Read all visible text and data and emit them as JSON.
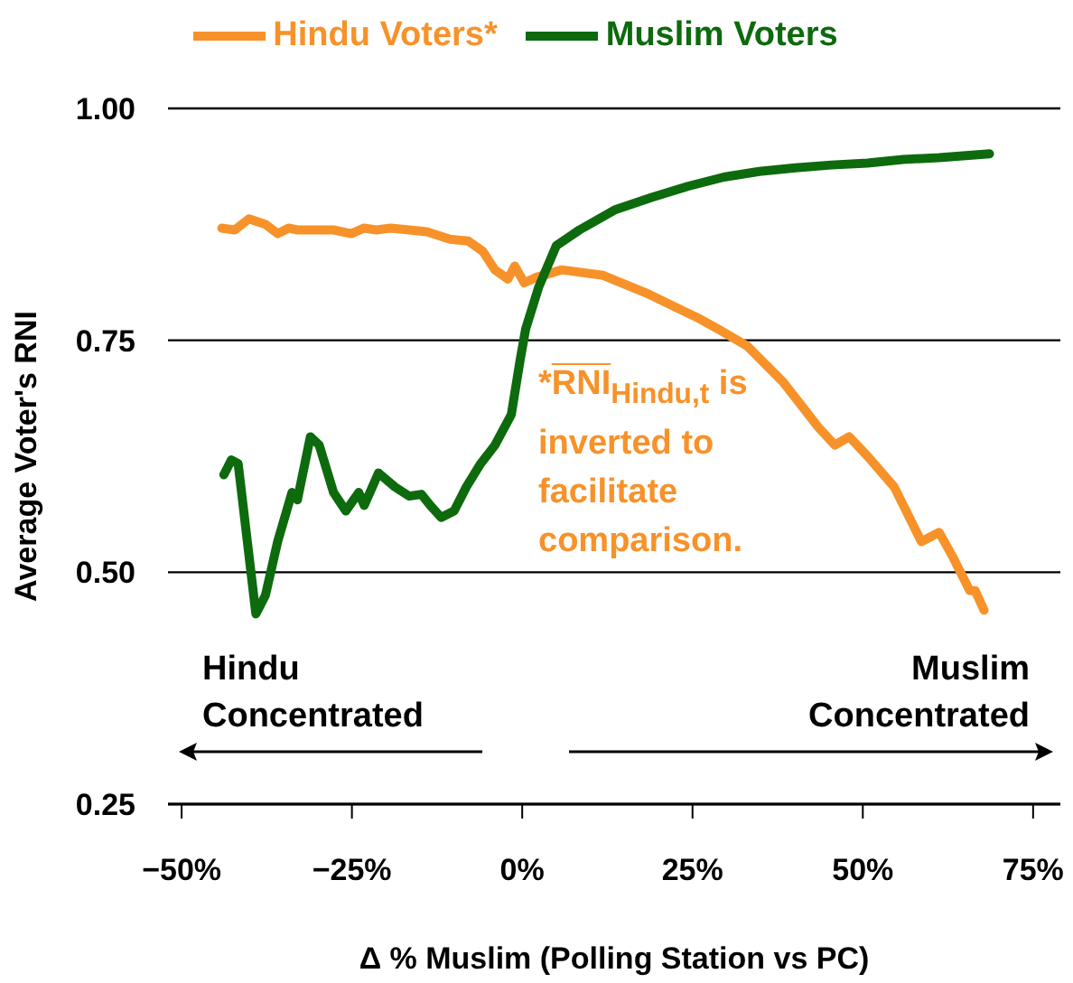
{
  "chart_data": {
    "type": "line",
    "xlabel": "Δ % Muslim (Polling Station vs PC)",
    "ylabel": "Average Voter's RNI",
    "xlim": [
      -52,
      79
    ],
    "xticks": [
      {
        "value": -50,
        "label": "−50%"
      },
      {
        "value": -25,
        "label": "−25%"
      },
      {
        "value": 0,
        "label": "0%"
      },
      {
        "value": 25,
        "label": "25%"
      },
      {
        "value": 50,
        "label": "50%"
      },
      {
        "value": 75,
        "label": "75%"
      }
    ],
    "ylim": [
      0.25,
      1.0
    ],
    "yticks": [
      {
        "value": 0.25,
        "label": "0.25"
      },
      {
        "value": 0.5,
        "label": "0.50"
      },
      {
        "value": 0.75,
        "label": "0.75"
      },
      {
        "value": 1.0,
        "label": "1.00"
      }
    ],
    "grid": "y",
    "legend": "top",
    "marker": "none",
    "line_style": "solid",
    "annotations": [
      "Hindu Concentrated",
      "Muslim Concentrated",
      "*RNI$_{Hindu,t}$ is inverted to facilitate comparison."
    ],
    "series": [
      {
        "name": "Hindu Voters*",
        "color": "#f7922a",
        "x": [
          -44.1,
          -42.2,
          -40.1,
          -37.7,
          -35.9,
          -34.3,
          -33.0,
          -30.3,
          -27.7,
          -25.1,
          -23.2,
          -21.4,
          -19.3,
          -16.6,
          -14.0,
          -10.6,
          -7.9,
          -5.8,
          -4.0,
          -2.1,
          -1.1,
          0.3,
          2.1,
          5.8,
          11.9,
          18.2,
          26.1,
          28.8,
          33.0,
          38.3,
          43.5,
          45.9,
          48.0,
          50.7,
          54.6,
          58.6,
          61.2,
          63.1,
          65.7,
          66.5,
          67.8
        ],
        "values": [
          0.871,
          0.869,
          0.881,
          0.875,
          0.865,
          0.871,
          0.869,
          0.869,
          0.869,
          0.865,
          0.871,
          0.869,
          0.871,
          0.869,
          0.867,
          0.859,
          0.857,
          0.846,
          0.826,
          0.816,
          0.83,
          0.812,
          0.818,
          0.826,
          0.82,
          0.801,
          0.773,
          0.762,
          0.744,
          0.705,
          0.656,
          0.637,
          0.646,
          0.625,
          0.592,
          0.533,
          0.543,
          0.518,
          0.48,
          0.48,
          0.459
        ]
      },
      {
        "name": "Muslim Voters",
        "color": "#0d6a0d",
        "x": [
          -43.8,
          -42.7,
          -41.7,
          -39.1,
          -37.7,
          -35.9,
          -33.8,
          -33.0,
          -31.1,
          -29.8,
          -27.7,
          -25.9,
          -24.0,
          -23.2,
          -21.1,
          -18.7,
          -16.6,
          -14.8,
          -13.5,
          -11.9,
          -10.0,
          -8.2,
          -6.1,
          -4.0,
          -1.6,
          -0.3,
          0.5,
          2.4,
          5.0,
          8.4,
          13.7,
          19.0,
          24.3,
          29.6,
          34.8,
          40.1,
          45.4,
          50.7,
          55.9,
          61.2,
          68.6
        ],
        "values": [
          0.605,
          0.621,
          0.617,
          0.455,
          0.475,
          0.533,
          0.586,
          0.578,
          0.646,
          0.637,
          0.586,
          0.566,
          0.586,
          0.572,
          0.607,
          0.592,
          0.582,
          0.584,
          0.572,
          0.559,
          0.566,
          0.592,
          0.617,
          0.637,
          0.67,
          0.729,
          0.762,
          0.807,
          0.852,
          0.869,
          0.891,
          0.904,
          0.916,
          0.926,
          0.932,
          0.936,
          0.939,
          0.941,
          0.945,
          0.947,
          0.951
        ]
      }
    ]
  }
}
